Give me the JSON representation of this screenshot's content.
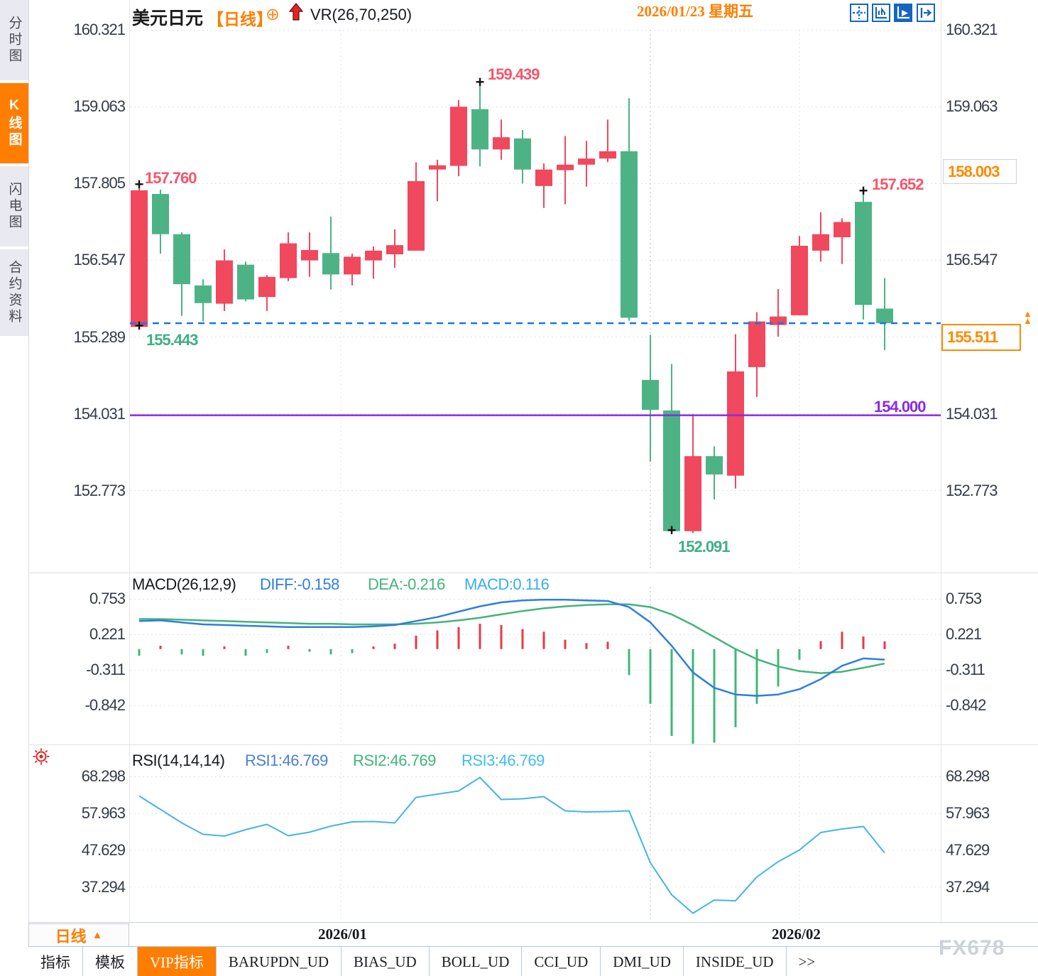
{
  "title": {
    "symbol": "美元日元",
    "period": "【日线】",
    "plus_icon": "⊕",
    "indicator": "VR(26,70,250)"
  },
  "sidebar": {
    "items": [
      {
        "label": "分时图",
        "active": false
      },
      {
        "label": "K线图",
        "active": true
      },
      {
        "label": "闪电图",
        "active": false
      },
      {
        "label": "合约资料",
        "active": false
      }
    ]
  },
  "left_axis": {
    "main": [
      "160.321",
      "159.063",
      "157.805",
      "156.547",
      "155.289",
      "154.031",
      "152.773"
    ],
    "macd": [
      "0.753",
      "0.221",
      "-0.311",
      "-0.842"
    ],
    "rsi": [
      "68.298",
      "57.963",
      "47.629",
      "37.294"
    ]
  },
  "right_axis": {
    "main": [
      "160.321",
      "159.063",
      "156.547",
      "154.031",
      "152.773"
    ],
    "price_alert": "158.003",
    "last_price": "155.511"
  },
  "annotations": {
    "marker": "+",
    "candle1_high": "157.760",
    "candle1_low": "155.443",
    "peak_high": "159.439",
    "trough_low": "152.091",
    "recent_high": "157.652",
    "support_line": "154.000"
  },
  "macd_legend": {
    "name": "MACD(26,12,9)",
    "diff": "DIFF:-0.158",
    "dea": "DEA:-0.216",
    "macd": "MACD:0.116"
  },
  "rsi_legend": {
    "name": "RSI(14,14,14)",
    "rsi1": "RSI1:46.769",
    "rsi2": "RSI2:46.769",
    "rsi3": "RSI3:46.769"
  },
  "bottom_axis": {
    "period_selector": "日线",
    "tick_jan": "2026/01",
    "tick_feb": "2026/02",
    "crosshair_date": "2026/01/23 星期五"
  },
  "tabs": [
    {
      "label": "指标",
      "active": false
    },
    {
      "label": "模板",
      "active": false
    },
    {
      "label": "VIP指标",
      "active": true
    },
    {
      "label": "BARUPDN_UD",
      "active": false
    },
    {
      "label": "BIAS_UD",
      "active": false
    },
    {
      "label": "BOLL_UD",
      "active": false
    },
    {
      "label": "CCI_UD",
      "active": false
    },
    {
      "label": "DMI_UD",
      "active": false
    },
    {
      "label": "INSIDE_UD",
      "active": false
    },
    {
      "label": ">>",
      "active": false
    }
  ],
  "watermark": "FX678",
  "colors": {
    "up": "#f0485c",
    "down": "#4db385",
    "diff_line": "#2f7ee0",
    "dea_line": "#45b37c",
    "rsi_line": "#45b4e8",
    "accent_orange": "#ff7e00",
    "current_price_line": "#1b74e8",
    "support_line": "#8a2be2",
    "grid": "#e2e2e8",
    "crosshair": "#b8bcc6"
  },
  "chart_data": [
    {
      "type": "candlestick",
      "title": "美元日元 日线",
      "y_ticks": [
        160.321,
        159.063,
        157.805,
        156.547,
        155.289,
        154.031,
        152.773
      ],
      "current_price": 155.511,
      "support_level": 154.0,
      "high_marked": 159.439,
      "low_marked": 152.091,
      "columns": [
        "open",
        "high",
        "low",
        "close"
      ],
      "candles": [
        [
          155.45,
          157.76,
          155.44,
          157.69
        ],
        [
          157.63,
          157.7,
          156.65,
          156.97
        ],
        [
          156.97,
          157.0,
          155.63,
          156.15
        ],
        [
          156.13,
          156.23,
          155.54,
          155.84
        ],
        [
          155.83,
          156.72,
          155.71,
          156.54
        ],
        [
          156.47,
          156.52,
          155.87,
          155.9
        ],
        [
          155.94,
          156.3,
          155.71,
          156.27
        ],
        [
          156.25,
          157.0,
          156.2,
          156.82
        ],
        [
          156.54,
          157.0,
          156.27,
          156.71
        ],
        [
          156.66,
          157.26,
          156.06,
          156.31
        ],
        [
          156.31,
          156.65,
          156.13,
          156.6
        ],
        [
          156.54,
          156.77,
          156.24,
          156.7
        ],
        [
          156.64,
          157.05,
          156.42,
          156.79
        ],
        [
          156.7,
          158.15,
          156.7,
          157.84
        ],
        [
          158.03,
          158.19,
          157.51,
          158.1
        ],
        [
          158.09,
          159.17,
          157.92,
          159.06
        ],
        [
          159.02,
          159.439,
          158.08,
          158.36
        ],
        [
          158.36,
          158.85,
          158.19,
          158.56
        ],
        [
          158.54,
          158.68,
          157.8,
          158.03
        ],
        [
          157.76,
          158.13,
          157.4,
          158.03
        ],
        [
          158.02,
          158.58,
          157.46,
          158.11
        ],
        [
          158.11,
          158.5,
          157.75,
          158.21
        ],
        [
          158.21,
          158.85,
          158.15,
          158.33
        ],
        [
          158.33,
          159.2,
          155.55,
          155.6
        ],
        [
          154.58,
          155.32,
          153.24,
          154.09
        ],
        [
          154.08,
          154.84,
          152.091,
          152.1
        ],
        [
          152.1,
          154.02,
          152.07,
          153.33
        ],
        [
          153.33,
          153.49,
          152.62,
          153.03
        ],
        [
          153.01,
          155.33,
          152.8,
          154.72
        ],
        [
          154.79,
          155.69,
          154.3,
          155.54
        ],
        [
          155.48,
          156.07,
          155.29,
          155.62
        ],
        [
          155.64,
          156.94,
          155.64,
          156.78
        ],
        [
          156.7,
          157.33,
          156.52,
          156.97
        ],
        [
          156.92,
          157.23,
          156.48,
          157.17
        ],
        [
          157.5,
          157.652,
          155.57,
          155.81
        ],
        [
          155.75,
          156.25,
          155.07,
          155.51
        ]
      ]
    },
    {
      "type": "macd",
      "params": "MACD(26,12,9)",
      "y_ticks": [
        0.753,
        0.221,
        -0.311,
        -0.842
      ],
      "diff": [
        0.42,
        0.43,
        0.4,
        0.37,
        0.36,
        0.35,
        0.34,
        0.33,
        0.33,
        0.33,
        0.33,
        0.34,
        0.36,
        0.42,
        0.48,
        0.56,
        0.64,
        0.7,
        0.73,
        0.74,
        0.74,
        0.73,
        0.72,
        0.63,
        0.4,
        0.05,
        -0.35,
        -0.58,
        -0.68,
        -0.7,
        -0.68,
        -0.6,
        -0.45,
        -0.25,
        -0.14,
        -0.158
      ],
      "dea": [
        0.45,
        0.45,
        0.44,
        0.43,
        0.42,
        0.41,
        0.4,
        0.39,
        0.38,
        0.38,
        0.37,
        0.37,
        0.37,
        0.38,
        0.4,
        0.43,
        0.47,
        0.52,
        0.57,
        0.61,
        0.64,
        0.66,
        0.67,
        0.67,
        0.63,
        0.52,
        0.36,
        0.18,
        0.0,
        -0.15,
        -0.26,
        -0.33,
        -0.36,
        -0.34,
        -0.28,
        -0.216
      ],
      "hist": [
        -0.1,
        0.05,
        -0.08,
        -0.1,
        0.04,
        -0.1,
        -0.06,
        0.05,
        -0.04,
        -0.08,
        -0.06,
        0.04,
        0.08,
        0.2,
        0.28,
        0.33,
        0.38,
        0.36,
        0.3,
        0.26,
        0.14,
        0.09,
        0.11,
        -0.39,
        -0.82,
        -1.3,
        -1.42,
        -1.4,
        -1.17,
        -0.82,
        -0.56,
        -0.16,
        0.12,
        0.26,
        0.19,
        0.116
      ]
    },
    {
      "type": "rsi",
      "params": "RSI(14,14,14)",
      "y_ticks": [
        68.298,
        57.963,
        47.629,
        37.294
      ],
      "rsi": [
        62.8,
        59.0,
        55.2,
        52.0,
        51.5,
        53.3,
        54.8,
        51.6,
        52.6,
        54.3,
        55.5,
        55.6,
        55.2,
        62.4,
        63.3,
        64.2,
        68.0,
        61.8,
        62.0,
        62.6,
        58.6,
        58.3,
        58.4,
        58.6,
        44.0,
        35.0,
        29.8,
        33.5,
        33.3,
        40.0,
        44.3,
        47.6,
        52.5,
        53.5,
        54.2,
        46.77
      ]
    }
  ],
  "crosshair": {
    "candle_index": 24,
    "date_label": "2026/01/23 星期五"
  }
}
